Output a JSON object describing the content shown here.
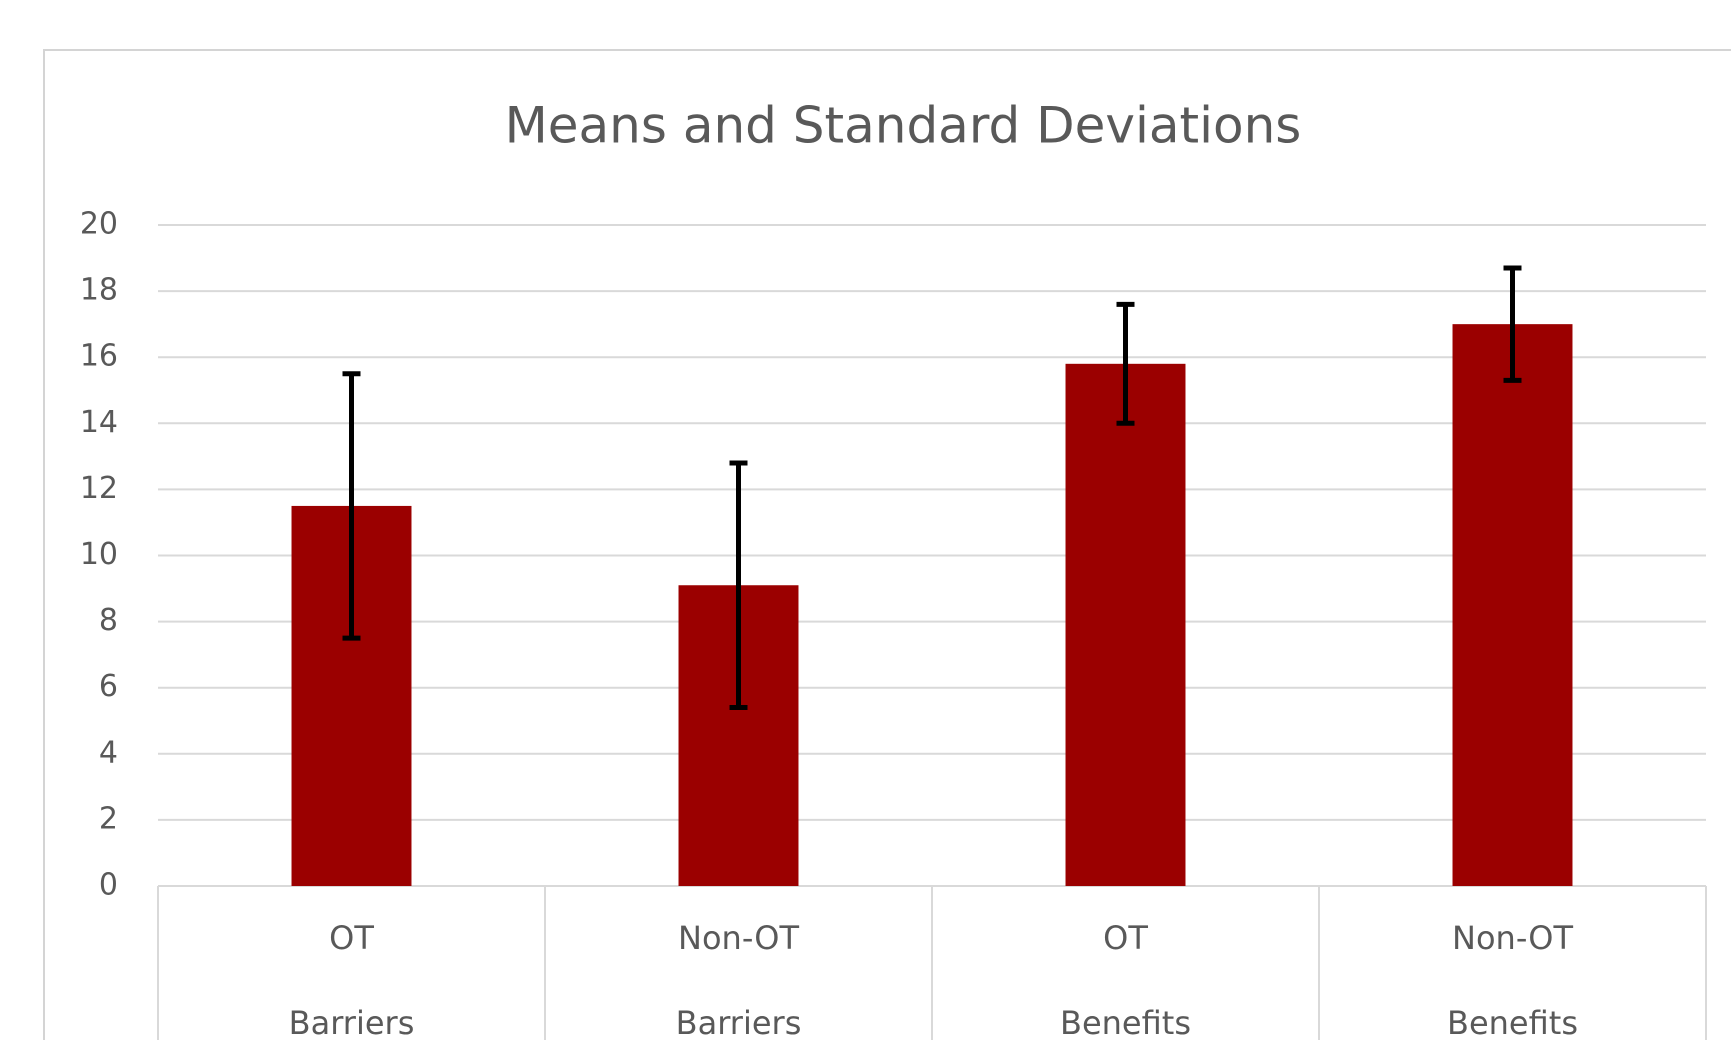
{
  "chart_data": {
    "type": "bar",
    "title": "Means and Standard Deviations",
    "categories": [
      "OT",
      "Non-OT",
      "OT",
      "Non-OT"
    ],
    "groups": [
      "Barriers",
      "Barriers",
      "Benefits",
      "Benefits"
    ],
    "values": [
      11.5,
      9.1,
      15.8,
      17.0
    ],
    "errors": [
      4.0,
      3.7,
      1.8,
      1.7
    ],
    "color": "#9b0000",
    "ylim": [
      0,
      20
    ],
    "yticks": [
      0,
      2,
      4,
      6,
      8,
      10,
      12,
      14,
      16,
      18,
      20
    ],
    "grid": true
  }
}
